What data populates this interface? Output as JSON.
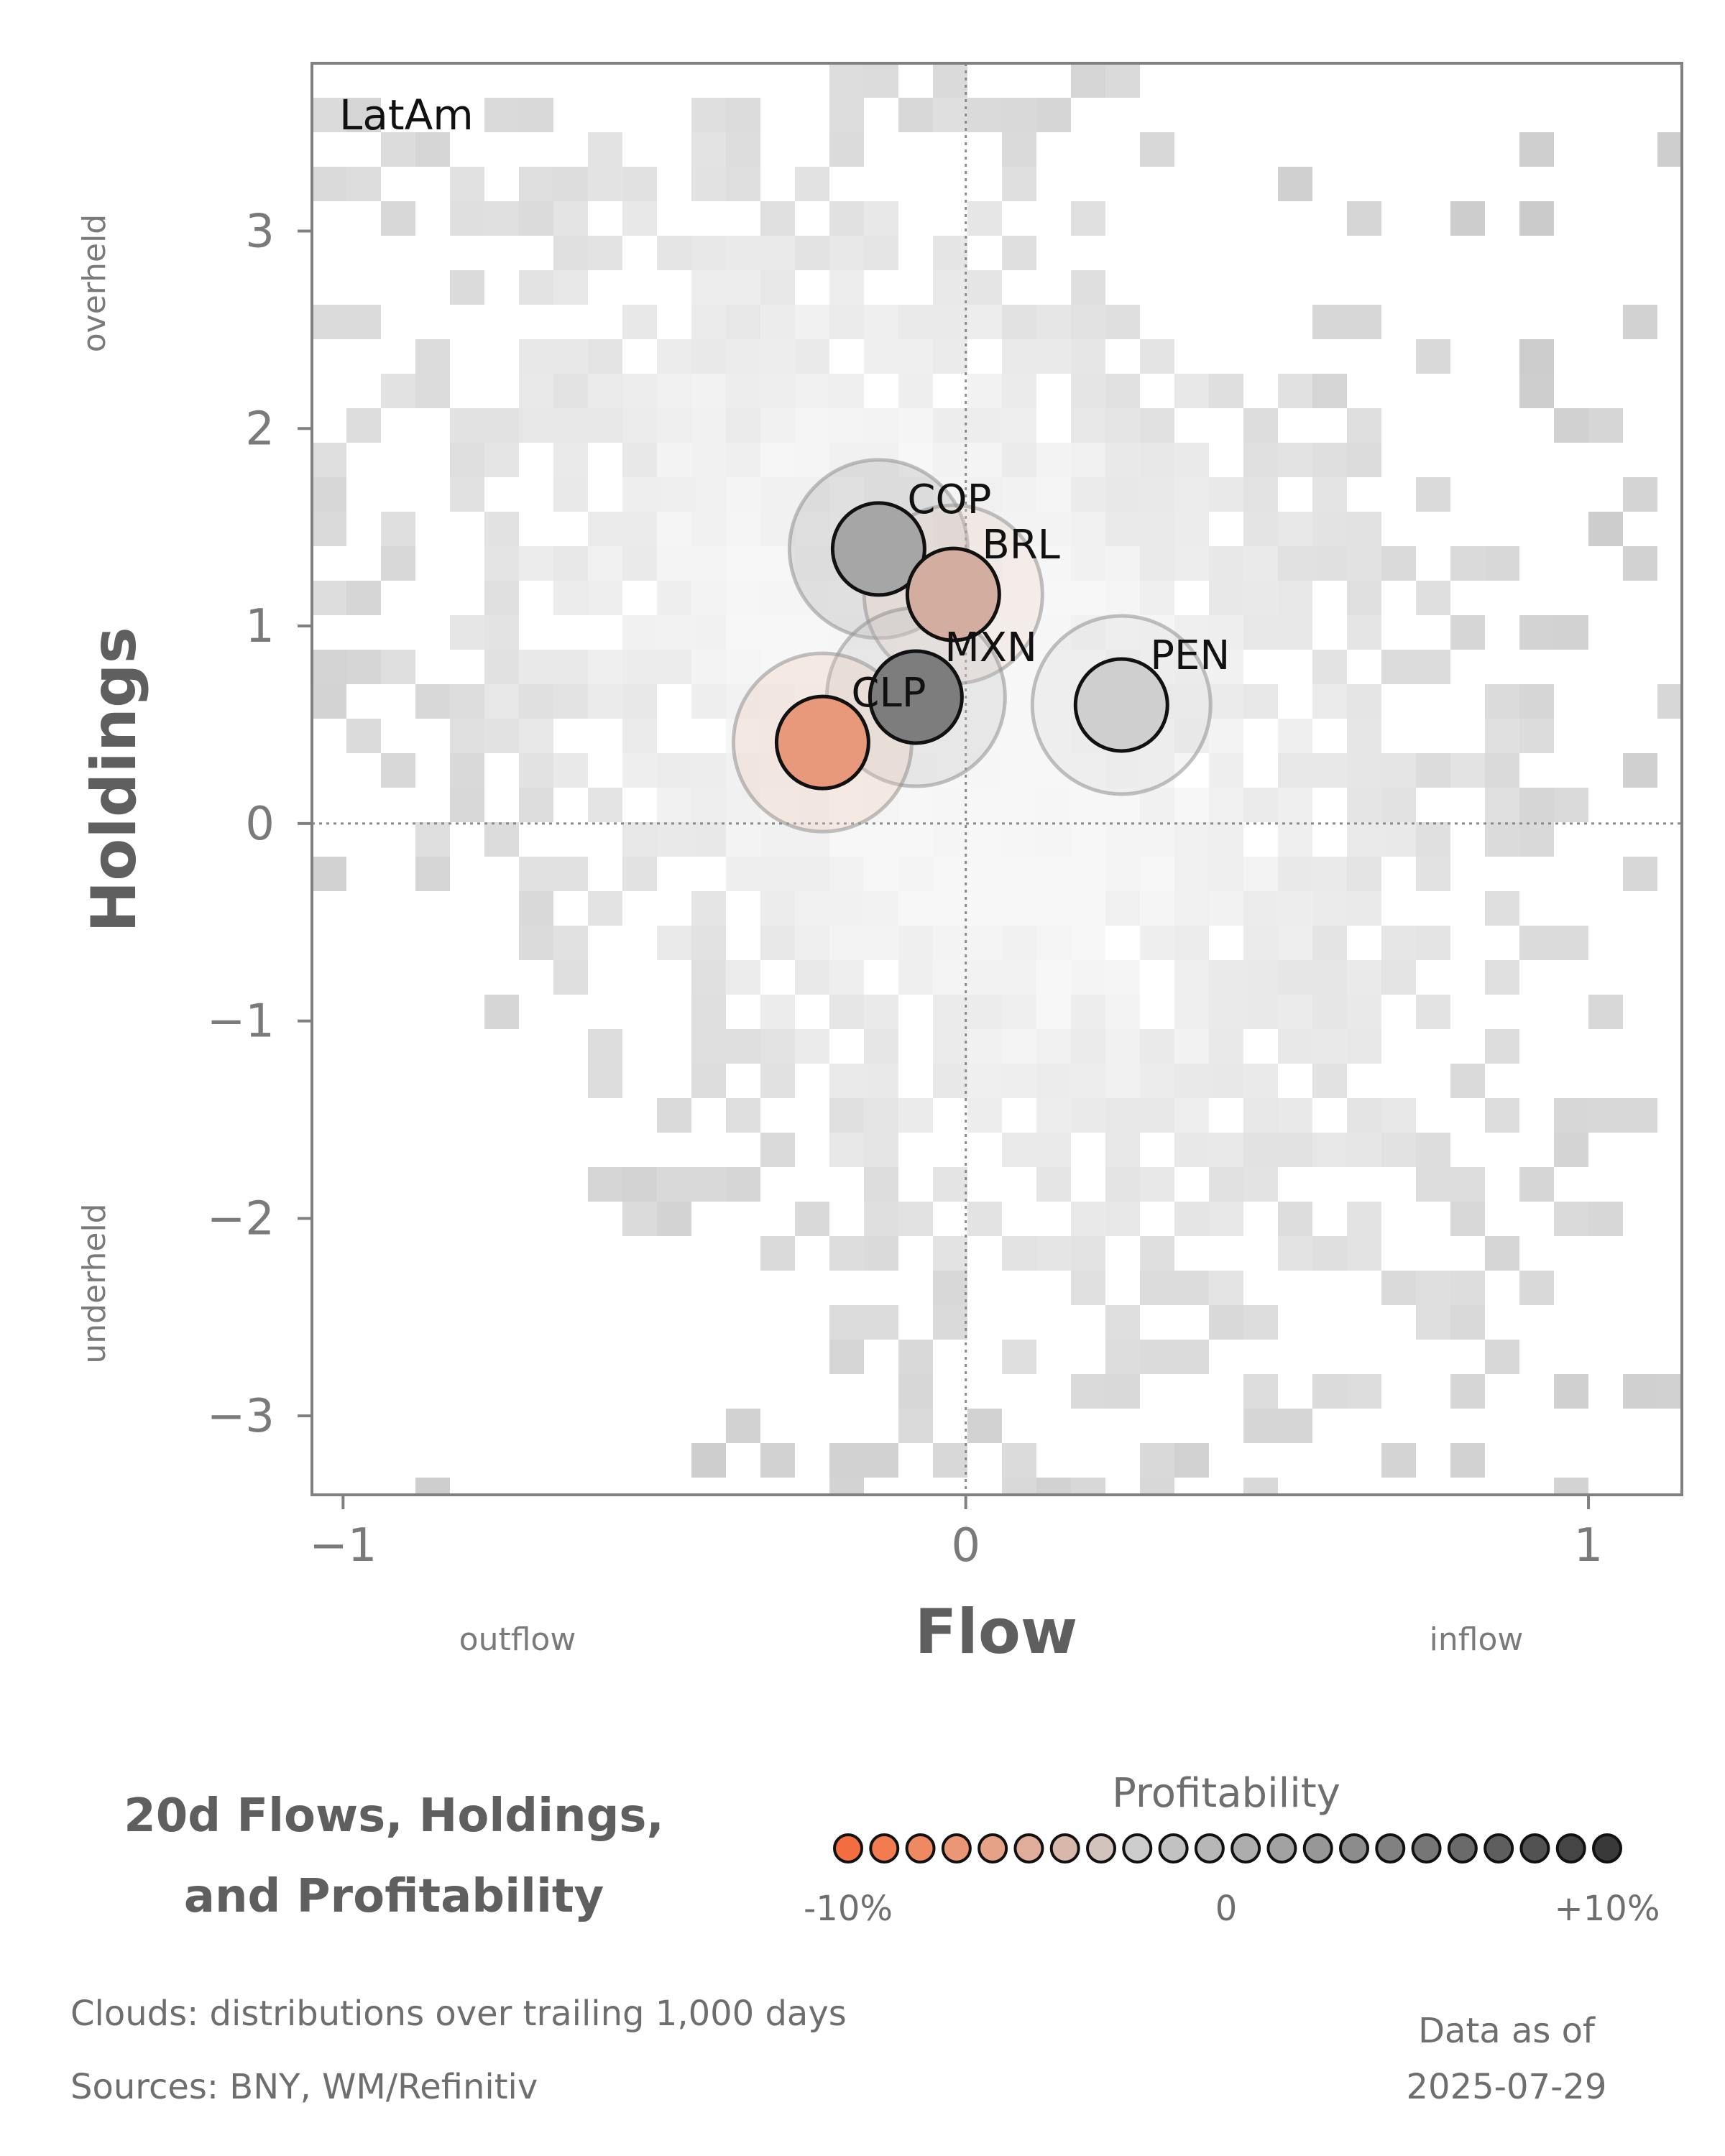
{
  "chart_data": {
    "type": "scatter",
    "panel_label": "LatAm",
    "xlabel": "Flow",
    "ylabel": "Holdings",
    "xlim": [
      -1.05,
      1.15
    ],
    "ylim": [
      -3.4,
      3.85
    ],
    "x_ticks": [
      -1,
      0,
      1
    ],
    "x_tick_labels": [
      "−1",
      "0",
      "1"
    ],
    "y_ticks": [
      -3,
      -2,
      -1,
      0,
      1,
      2,
      3
    ],
    "y_tick_labels": [
      "−3",
      "−2",
      "−1",
      "0",
      "1",
      "2",
      "3"
    ],
    "x_side_labels": {
      "low": "outflow",
      "high": "inflow"
    },
    "y_side_labels": {
      "low": "underheld",
      "high": "overheld"
    },
    "reference_lines": {
      "x": 0,
      "y": 0,
      "style": "dotted"
    },
    "grid": false,
    "points": [
      {
        "label": "COP",
        "x": -0.14,
        "y": 1.39,
        "profitability": 5,
        "color": "#a6a6a6",
        "halo_color": "#a6a6a6"
      },
      {
        "label": "BRL",
        "x": -0.02,
        "y": 1.16,
        "profitability": -3,
        "color": "#d3ada0",
        "halo_color": "#e9cfc4"
      },
      {
        "label": "MXN",
        "x": -0.08,
        "y": 0.64,
        "profitability": 8,
        "color": "#7d7d7d",
        "halo_color": "#bdbdbd"
      },
      {
        "label": "CLP",
        "x": -0.23,
        "y": 0.41,
        "profitability": -7,
        "color": "#e8997b",
        "halo_color": "#f0c4b2"
      },
      {
        "label": "PEN",
        "x": 0.25,
        "y": 0.6,
        "profitability": 1,
        "color": "#cfcfcf",
        "halo_color": "#d9d9d9"
      }
    ],
    "background": "density cloud of trailing observations (grey 2-D histogram)"
  },
  "title": {
    "line1": "20d Flows, Holdings,",
    "line2": "and Profitability"
  },
  "legend": {
    "title": "Profitability",
    "colors": [
      "#f26d3f",
      "#f27b50",
      "#ef8962",
      "#eb9674",
      "#e6a286",
      "#dfad99",
      "#d8b8ab",
      "#d2c3bc",
      "#cccccc",
      "#c2c2c2",
      "#b7b7b7",
      "#adadad",
      "#a2a2a2",
      "#979797",
      "#8c8c8c",
      "#818181",
      "#767676",
      "#6a6a6a",
      "#5e5e5e",
      "#525252",
      "#454545",
      "#393939"
    ],
    "tick_labels": [
      "-10%",
      "0",
      "+10%"
    ]
  },
  "footnotes": {
    "clouds": "Clouds:  distributions over trailing 1,000 days",
    "sources": "Sources:  BNY, WM/Refinitiv",
    "asof_line1": "Data as of",
    "asof_line2": "2025-07-29"
  }
}
